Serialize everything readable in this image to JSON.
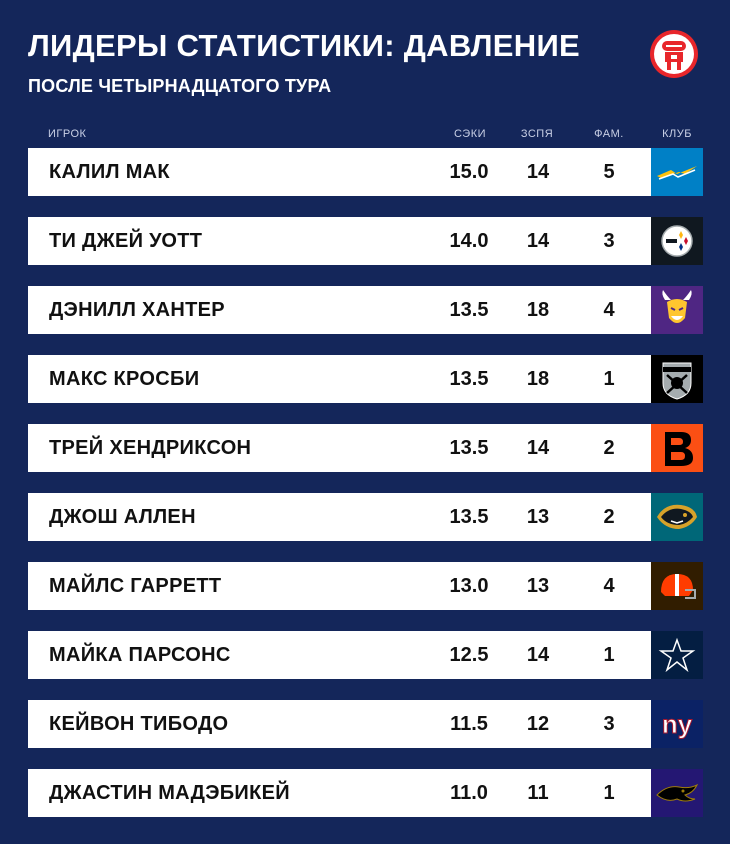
{
  "header": {
    "title": "ЛИДЕРЫ СТАТИСТИКИ: ДАВЛЕНИЕ",
    "subtitle": "ПОСЛЕ ЧЕТЫРНАДЦАТОГО ТУРА"
  },
  "columns": {
    "player": "ИГРОК",
    "sacks": "СЭКИ",
    "zspa": "ЗСПЯ",
    "fam": "ФАМ.",
    "club": "КЛУБ"
  },
  "colors": {
    "background": "#14265a",
    "row": "#ffffff",
    "text": "#111111"
  },
  "rows": [
    {
      "name": "КАЛИЛ МАК",
      "sacks": "15.0",
      "zspa": "14",
      "fam": "5",
      "club_icon": "chargers-logo-icon",
      "club_color": "#0080c6"
    },
    {
      "name": "ТИ ДЖЕЙ УОТТ",
      "sacks": "14.0",
      "zspa": "14",
      "fam": "3",
      "club_icon": "steelers-logo-icon",
      "club_color": "#101820"
    },
    {
      "name": "ДЭНИЛЛ ХАНТЕР",
      "sacks": "13.5",
      "zspa": "18",
      "fam": "4",
      "club_icon": "vikings-logo-icon",
      "club_color": "#4f2683"
    },
    {
      "name": "МАКС КРОСБИ",
      "sacks": "13.5",
      "zspa": "18",
      "fam": "1",
      "club_icon": "raiders-logo-icon",
      "club_color": "#000000"
    },
    {
      "name": "ТРЕЙ ХЕНДРИКСОН",
      "sacks": "13.5",
      "zspa": "14",
      "fam": "2",
      "club_icon": "bengals-logo-icon",
      "club_color": "#fb4f14"
    },
    {
      "name": "ДЖОШ АЛЛЕН",
      "sacks": "13.5",
      "zspa": "13",
      "fam": "2",
      "club_icon": "jaguars-logo-icon",
      "club_color": "#006778"
    },
    {
      "name": "МАЙЛС ГАРРЕТТ",
      "sacks": "13.0",
      "zspa": "13",
      "fam": "4",
      "club_icon": "browns-logo-icon",
      "club_color": "#311d00"
    },
    {
      "name": "МАЙКА ПАРСОНС",
      "sacks": "12.5",
      "zspa": "14",
      "fam": "1",
      "club_icon": "cowboys-logo-icon",
      "club_color": "#041e42"
    },
    {
      "name": "КЕЙВОН ТИБОДО",
      "sacks": "11.5",
      "zspa": "12",
      "fam": "3",
      "club_icon": "giants-logo-icon",
      "club_color": "#0b2265"
    },
    {
      "name": "ДЖАСТИН МАДЭБИКЕЙ",
      "sacks": "11.0",
      "zspa": "11",
      "fam": "1",
      "club_icon": "ravens-logo-icon",
      "club_color": "#241773"
    }
  ]
}
